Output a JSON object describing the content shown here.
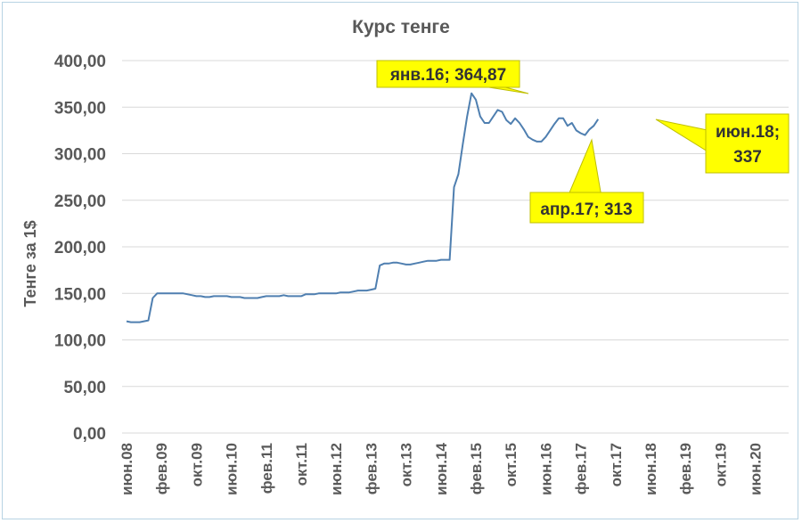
{
  "chart_data": {
    "type": "line",
    "title": "Курс тенге",
    "ylabel": "Тенге за 1$",
    "xlabel": "",
    "ylim": [
      0,
      400
    ],
    "grid": true,
    "colors": {
      "line": "#4f7fb0",
      "callout": "#ffff00",
      "grid": "#d9d9d9"
    },
    "yticks": [
      "0,00",
      "50,00",
      "100,00",
      "150,00",
      "200,00",
      "250,00",
      "300,00",
      "350,00",
      "400,00"
    ],
    "xticks": [
      "июн.08",
      "фев.09",
      "окт.09",
      "июн.10",
      "фев.11",
      "окт.11",
      "июн.12",
      "фев.13",
      "окт.13",
      "июн.14",
      "фев.15",
      "окт.15",
      "июн.16",
      "фев.17",
      "окт.17",
      "июн.18",
      "фев.19",
      "окт.19",
      "июн.20"
    ],
    "series": [
      {
        "values": [
          120,
          119,
          119,
          119,
          120,
          121,
          145,
          150,
          150,
          150,
          150,
          150,
          150,
          150,
          149,
          148,
          147,
          147,
          146,
          146,
          147,
          147,
          147,
          147,
          146,
          146,
          146,
          145,
          145,
          145,
          145,
          146,
          147,
          147,
          147,
          147,
          148,
          147,
          147,
          147,
          147,
          149,
          149,
          149,
          150,
          150,
          150,
          150,
          150,
          151,
          151,
          151,
          152,
          153,
          153,
          153,
          154,
          155,
          180,
          182,
          182,
          183,
          183,
          182,
          181,
          181,
          182,
          183,
          184,
          185,
          185,
          185,
          186,
          186,
          186,
          264,
          278,
          310,
          340,
          364.87,
          358,
          340,
          333,
          333,
          340,
          347,
          345,
          336,
          332,
          338,
          333,
          326,
          318,
          315,
          313,
          313,
          318,
          325,
          332,
          338,
          338,
          330,
          333,
          325,
          322,
          320,
          326,
          330,
          337
        ]
      }
    ],
    "annotations": [
      {
        "label": "янв.16; 364,87"
      },
      {
        "label": "апр.17; 313"
      },
      {
        "label_line1": "июн.18;",
        "label_line2": "337"
      }
    ]
  }
}
